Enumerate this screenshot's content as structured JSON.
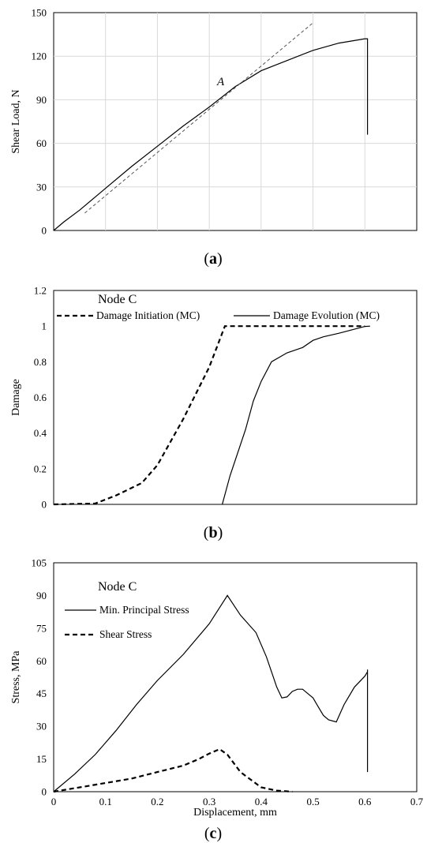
{
  "chart_data": [
    {
      "type": "line",
      "caption": "a",
      "ylabel": "Shear Load, N",
      "xlim": [
        0,
        0.7
      ],
      "ylim": [
        0,
        150
      ],
      "yticks": [
        "0",
        "30",
        "60",
        "90",
        "120",
        "150"
      ],
      "annotation": "A",
      "series": [
        {
          "style": "solid",
          "x": [
            0,
            0.02,
            0.05,
            0.1,
            0.15,
            0.2,
            0.25,
            0.3,
            0.35,
            0.4,
            0.45,
            0.5,
            0.55,
            0.6,
            0.605,
            0.605
          ],
          "y": [
            0,
            6,
            14,
            29,
            44,
            58,
            72,
            85,
            99,
            110,
            117,
            124,
            129,
            132,
            132,
            66
          ]
        },
        {
          "style": "dashed",
          "x": [
            0.06,
            0.5
          ],
          "y": [
            12,
            143
          ]
        }
      ]
    },
    {
      "type": "line",
      "caption": "b",
      "ylabel": "Damage",
      "xlim": [
        0,
        0.7
      ],
      "ylim": [
        0,
        1.2
      ],
      "yticks": [
        "0",
        "0.2",
        "0.4",
        "0.6",
        "0.8",
        "1",
        "1.2"
      ],
      "annotation": "Node C",
      "series": [
        {
          "name": "Damage Initiation (MC)",
          "style": "dashed",
          "x": [
            0,
            0.08,
            0.12,
            0.17,
            0.2,
            0.25,
            0.3,
            0.33,
            0.6
          ],
          "y": [
            0,
            0.005,
            0.05,
            0.12,
            0.22,
            0.48,
            0.77,
            1.0,
            1.0
          ]
        },
        {
          "name": "Damage Evolution (MC)",
          "style": "solid",
          "x": [
            0.325,
            0.34,
            0.37,
            0.385,
            0.4,
            0.42,
            0.45,
            0.48,
            0.5,
            0.52,
            0.55,
            0.6,
            0.61
          ],
          "y": [
            0,
            0.16,
            0.42,
            0.58,
            0.69,
            0.8,
            0.85,
            0.88,
            0.92,
            0.94,
            0.96,
            0.998,
            1.0
          ]
        }
      ]
    },
    {
      "type": "line",
      "caption": "c",
      "ylabel": "Stress, MPa",
      "xlabel": "Displacement, mm",
      "xlim": [
        0,
        0.7
      ],
      "ylim": [
        0,
        105
      ],
      "yticks": [
        "0",
        "15",
        "30",
        "45",
        "60",
        "75",
        "90",
        "105"
      ],
      "xticks": [
        "0",
        "0.1",
        "0.2",
        "0.3",
        "0.4",
        "0.5",
        "0.6",
        "0.7"
      ],
      "annotation": "Node C",
      "series": [
        {
          "name": "Min. Principal Stress",
          "style": "solid",
          "x": [
            0,
            0.04,
            0.08,
            0.12,
            0.16,
            0.2,
            0.25,
            0.3,
            0.335,
            0.36,
            0.39,
            0.41,
            0.42,
            0.43,
            0.44,
            0.45,
            0.46,
            0.47,
            0.48,
            0.49,
            0.5,
            0.51,
            0.52,
            0.53,
            0.545,
            0.56,
            0.58,
            0.6,
            0.605,
            0.605,
            0.605
          ],
          "y": [
            0,
            8,
            17,
            28,
            40,
            51,
            63,
            77,
            90,
            81,
            73,
            62,
            55,
            48,
            43,
            43.5,
            46,
            47,
            47,
            45,
            43,
            39,
            35,
            33,
            32,
            40,
            48,
            53,
            55,
            56,
            9
          ]
        },
        {
          "name": "Shear Stress",
          "style": "dashed",
          "x": [
            0,
            0.05,
            0.1,
            0.15,
            0.2,
            0.25,
            0.28,
            0.3,
            0.32,
            0.335,
            0.36,
            0.4,
            0.43,
            0.46
          ],
          "y": [
            0,
            2,
            4,
            6,
            9,
            12,
            15,
            17.5,
            19.5,
            17,
            9,
            2,
            0.5,
            0
          ]
        }
      ]
    }
  ]
}
